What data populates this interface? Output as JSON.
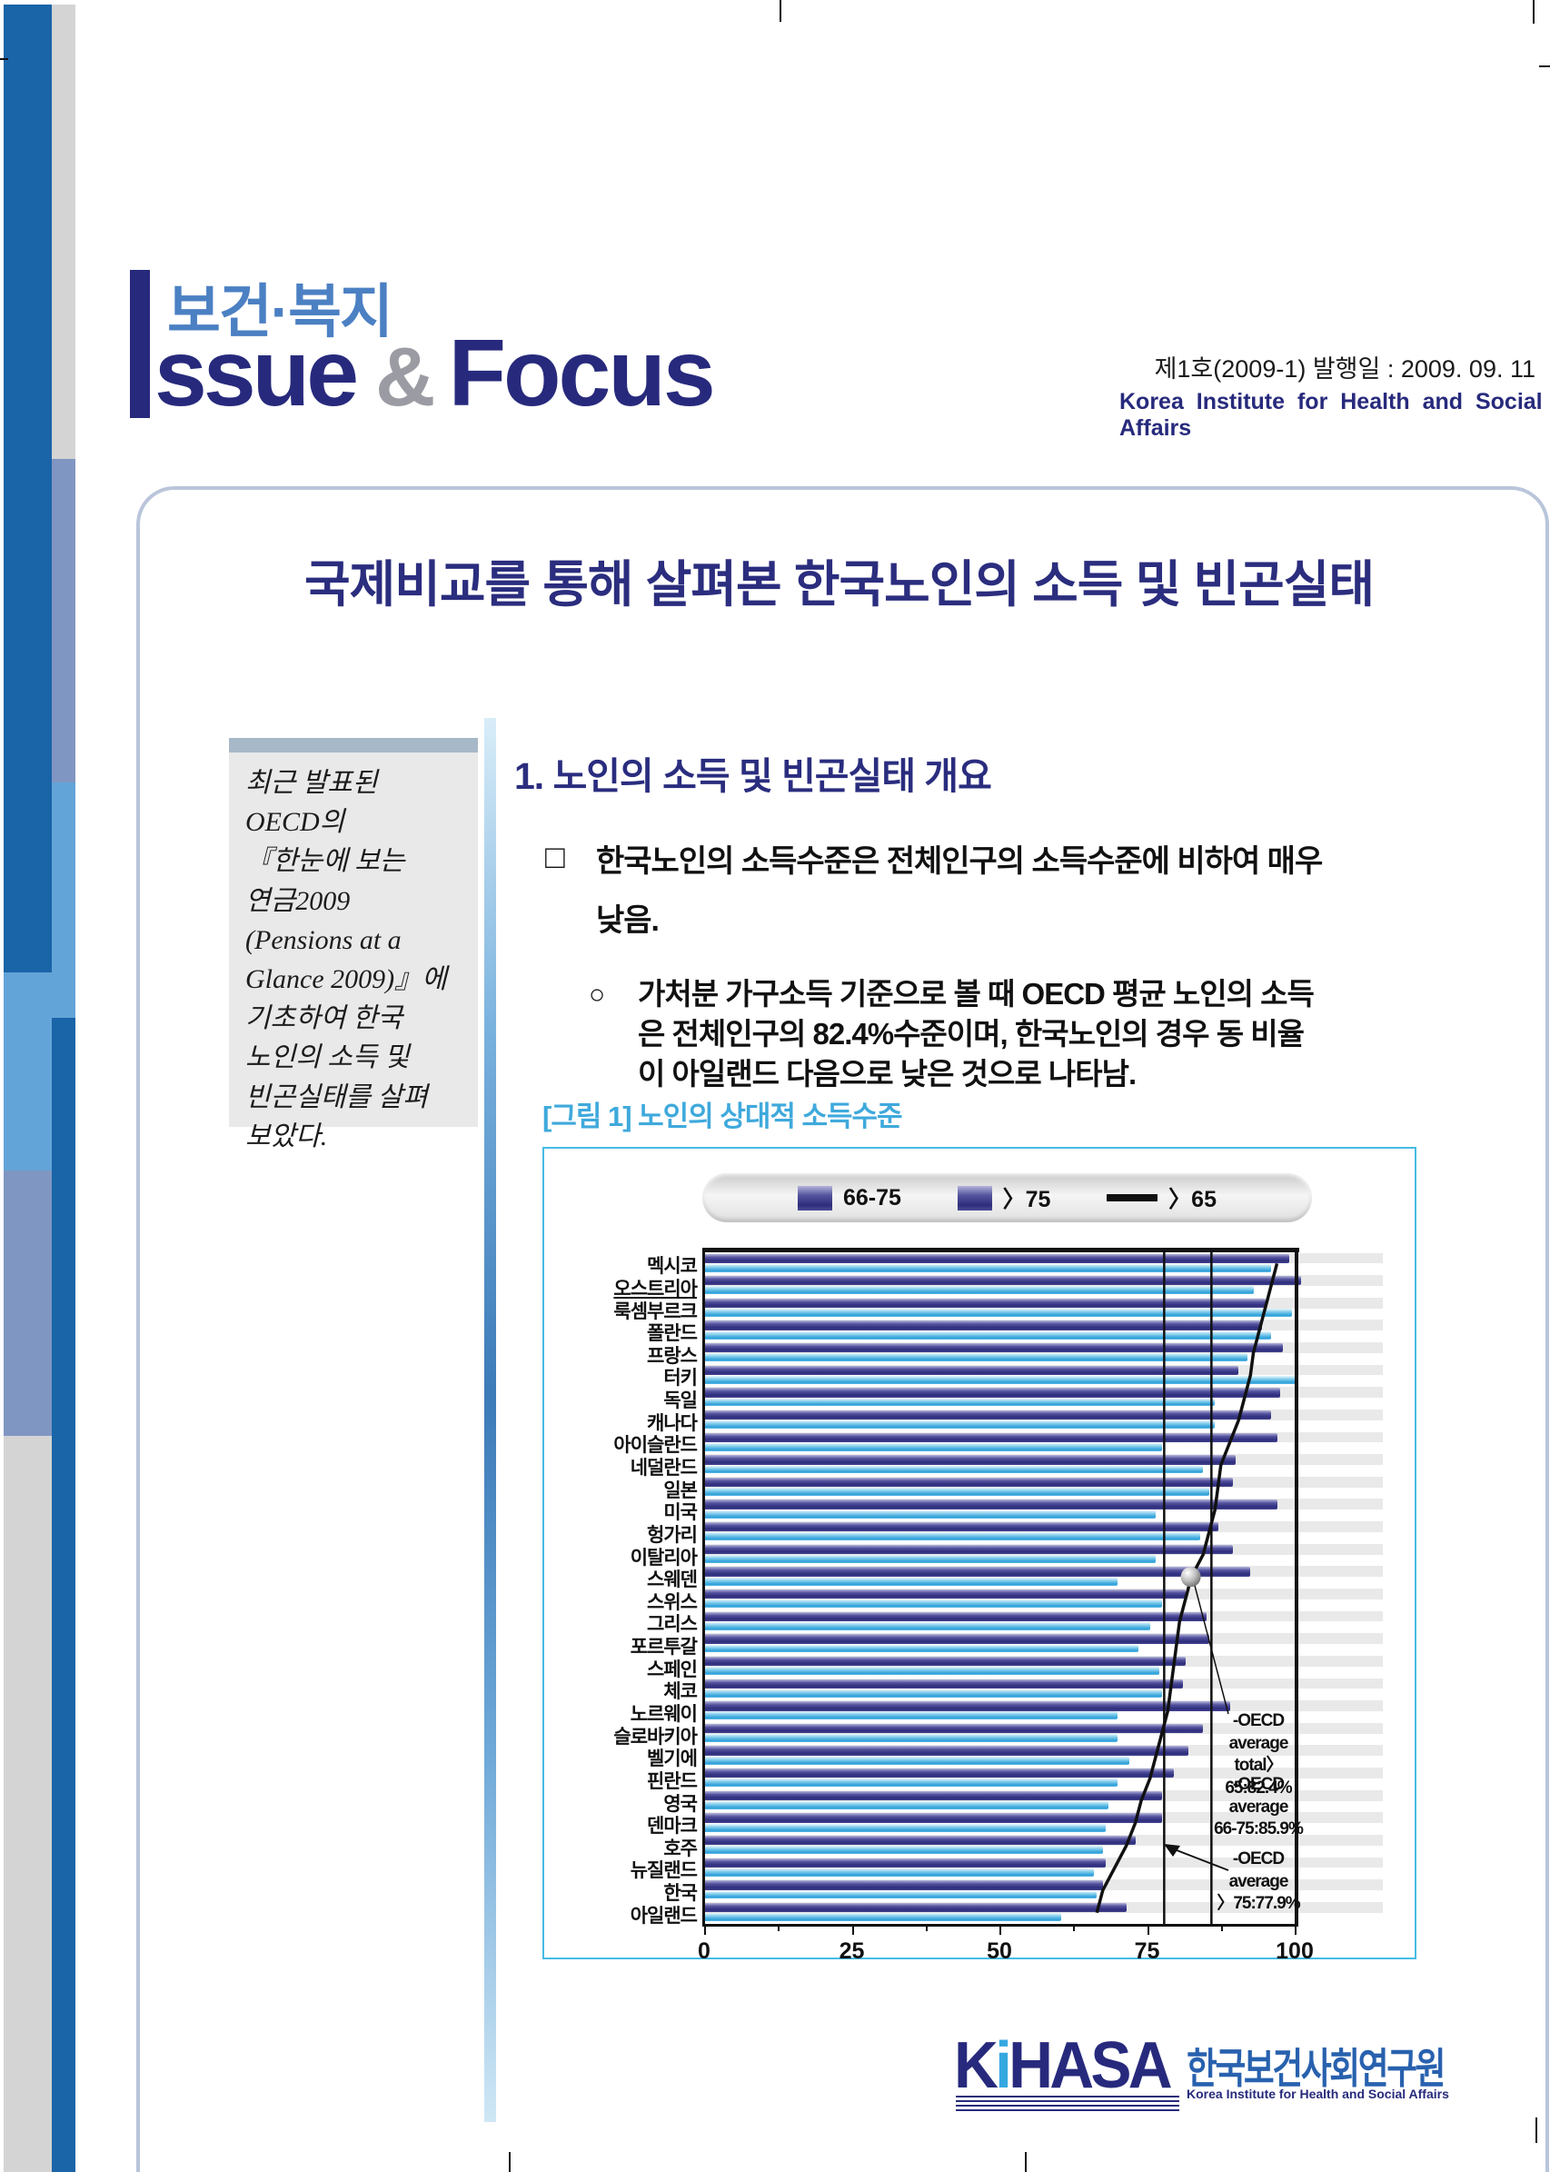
{
  "page": {
    "header": {
      "brand_korean": "보건·복지",
      "brand_issue": "ssue",
      "brand_amp": "&",
      "brand_focus": "Focus",
      "org_en": "Korea Institute for Health and Social Affairs",
      "issue_info": "제1호(2009-1) 발행일 : 2009. 09. 11"
    },
    "title": "국제비교를 통해 살펴본 한국노인의 소득 및 빈곤실태",
    "sidebar_note": "최근 발표된\nOECD의\n『한눈에 보는\n연금2009\n(Pensions at a\nGlance 2009)』에\n기초하여 한국\n노인의 소득 및\n빈곤실태를 살펴\n보았다.",
    "section1": {
      "heading": "1.  노인의 소득 및 빈곤실태 개요",
      "para1_bullet": "□",
      "para1": "한국노인의 소득수준은 전체인구의 소득수준에 비하여 매우\n낮음.",
      "para2_bullet": "○",
      "para2": "가처분 가구소득 기준으로 볼 때 OECD 평균 노인의 소득\n은 전체인구의 82.4%수준이며, 한국노인의 경우 동 비율\n이 아일랜드 다음으로 낮은 것으로 나타남.",
      "figure_caption": "[그림 1] 노인의 상대적 소득수준"
    },
    "footer": {
      "logo_k": "K",
      "logo_i": "i",
      "logo_rest": "HASA",
      "org_kr": "한국보건사회연구원",
      "org_en": "Korea Institute for Health and Social Affairs"
    }
  },
  "chart_data": {
    "type": "bar",
    "orientation": "horizontal",
    "title": "[그림 1] 노인의 상대적 소득수준",
    "xlabel": "",
    "ylabel": "",
    "xlim": [
      0,
      100
    ],
    "xticks": [
      "0",
      "25",
      "50",
      "75",
      "100"
    ],
    "legend_position": "top",
    "legend": [
      "66-75",
      "〉75",
      "〉65"
    ],
    "categories": [
      "멕시코",
      "오스트리아",
      "룩셈부르크",
      "폴란드",
      "프랑스",
      "터키",
      "독일",
      "캐나다",
      "아이슬란드",
      "네덜란드",
      "일본",
      "미국",
      "헝가리",
      "이탈리아",
      "스웨덴",
      "스위스",
      "그리스",
      "포르투갈",
      "스페인",
      "체코",
      "노르웨이",
      "슬로바키아",
      "벨기에",
      "핀란드",
      "영국",
      "덴마크",
      "호주",
      "뉴질랜드",
      "한국",
      "아일랜드"
    ],
    "underlined_category": "오스트리아",
    "series": [
      {
        "name": "66-75",
        "type": "bar",
        "color": "#2e2d7d",
        "values": [
          99,
          101,
          95,
          94.5,
          98,
          90.5,
          97.5,
          96,
          97,
          90,
          89.5,
          97,
          87,
          89.5,
          92.5,
          81.5,
          85,
          85.5,
          81.5,
          81,
          89,
          84.5,
          82,
          79.5,
          77.5,
          77.5,
          73,
          68,
          67.5,
          71.5
        ]
      },
      {
        "name": "〉75",
        "type": "bar",
        "color": "#2da0d9",
        "values": [
          96,
          93,
          99.5,
          96,
          92,
          100.5,
          86.5,
          86.5,
          77.5,
          84.5,
          85.5,
          76.5,
          84,
          76.5,
          70,
          77.5,
          75.5,
          73.5,
          77,
          77.5,
          70,
          70,
          72,
          70,
          68.5,
          68,
          67.5,
          66,
          66.5,
          60.5
        ]
      },
      {
        "name": "〉65",
        "type": "line",
        "color": "#111111",
        "values": [
          97,
          96,
          95,
          94,
          93,
          92.5,
          91.5,
          90.5,
          89,
          87.5,
          87,
          86.5,
          85.5,
          84.5,
          82.5,
          81.5,
          80.5,
          80,
          79.5,
          79,
          78.5,
          77.5,
          76.5,
          75.5,
          74,
          73,
          71.5,
          69.5,
          67.5,
          66.5
        ]
      }
    ],
    "reference_lines": [
      {
        "value": 77.9
      },
      {
        "value": 85.9
      }
    ],
    "marker": {
      "category": "스웨덴",
      "value": 82.4
    },
    "annotations": [
      {
        "text": "-OECD average\ntotal〉65:82.4%"
      },
      {
        "text": "-OECD average\n66-75:85.9%"
      },
      {
        "text": "-OECD average\n〉75:77.9%"
      }
    ]
  }
}
